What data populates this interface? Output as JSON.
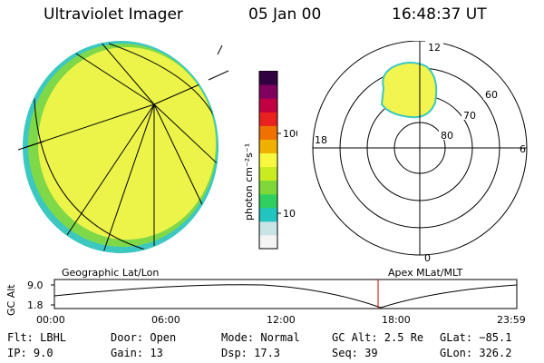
{
  "header": {
    "instrument": "Ultraviolet Imager",
    "date": "05 Jan 00",
    "time": "16:48:37 UT"
  },
  "colorbar": {
    "unit_label": "photon cm⁻²s⁻¹",
    "ticks": [
      "100",
      "10"
    ],
    "colors": [
      "#f4f4f4",
      "#c8e4e4",
      "#22c4c0",
      "#30d060",
      "#7ed83a",
      "#c8ec20",
      "#f8f840",
      "#f0b000",
      "#f07000",
      "#e82020",
      "#c00040",
      "#800060",
      "#300040"
    ]
  },
  "polar_plot": {
    "hour_labels": {
      "top": "12",
      "bottom": "0",
      "left": "18",
      "right": "6"
    },
    "lat_labels": [
      "60",
      "70",
      "80"
    ]
  },
  "timeline": {
    "left_label": "Geographic Lat/Lon",
    "right_label": "Apex MLat/MLT",
    "axis_label": "GC Alt",
    "y_ticks": [
      "9.0",
      "1.8"
    ],
    "x_ticks": [
      "00:00",
      "06:00",
      "12:00",
      "18:00",
      "23:59"
    ],
    "marker_color": "#d00000"
  },
  "info": {
    "flt": "Flt: LBHL",
    "ip": "IP:  9.0",
    "door": "Door: Open",
    "gain": "Gain: 13",
    "mode": "Mode: Normal",
    "dsp": "Dsp:    17.3",
    "gcalt": "GC Alt: 2.5 Re",
    "seq": "Seq: 39",
    "glat": "GLat: −85.1",
    "glon": "GLon: 326.2"
  }
}
